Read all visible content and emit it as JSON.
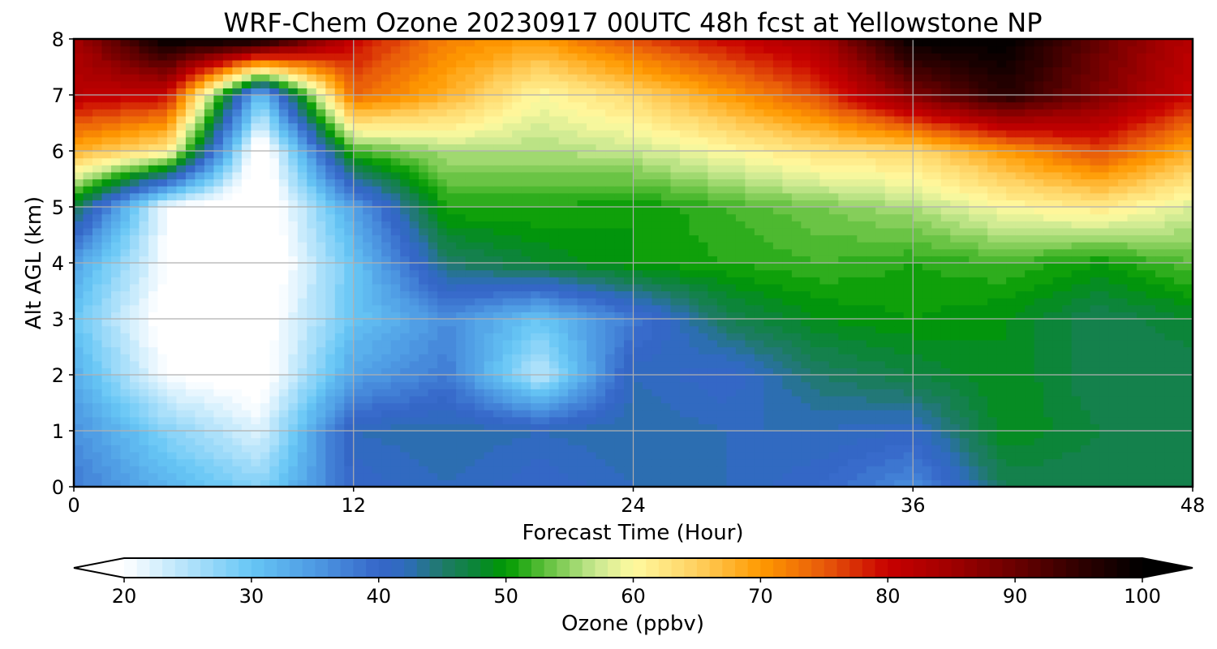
{
  "chart_data": {
    "type": "heatmap",
    "title": "WRF-Chem Ozone  20230917 00UTC 48h fcst at Yellowstone NP",
    "xlabel": "Forecast Time (Hour)",
    "ylabel": "Alt AGL (km)",
    "xlim": [
      0,
      48
    ],
    "ylim": [
      0,
      8
    ],
    "xticks": [
      0,
      12,
      24,
      36,
      48
    ],
    "yticks": [
      0,
      1,
      2,
      3,
      4,
      5,
      6,
      7,
      8
    ],
    "grid": true,
    "value_label": "Ozone  (ppbv)",
    "x": [
      0,
      4,
      8,
      12,
      16,
      20,
      24,
      28,
      32,
      36,
      40,
      44,
      48
    ],
    "y": [
      0,
      1,
      2,
      3,
      4,
      5,
      6,
      7,
      8
    ],
    "z": [
      [
        38,
        32,
        28,
        40,
        42,
        40,
        42,
        42,
        40,
        36,
        46,
        46,
        46
      ],
      [
        36,
        28,
        22,
        42,
        43,
        42,
        43,
        42,
        42,
        41,
        49,
        47,
        46
      ],
      [
        33,
        20,
        18,
        34,
        38,
        24,
        42,
        40,
        45,
        47,
        49,
        46,
        46
      ],
      [
        30,
        18,
        18,
        30,
        36,
        30,
        38,
        46,
        49,
        50,
        49,
        46,
        48
      ],
      [
        34,
        20,
        16,
        30,
        45,
        48,
        50,
        51,
        52,
        51,
        52,
        50,
        53
      ],
      [
        47,
        20,
        16,
        34,
        51,
        51,
        50,
        52,
        54,
        56,
        60,
        62,
        58
      ],
      [
        68,
        62,
        16,
        52,
        56,
        56,
        57,
        60,
        63,
        64,
        70,
        76,
        68
      ],
      [
        82,
        80,
        30,
        74,
        68,
        60,
        64,
        70,
        76,
        88,
        96,
        88,
        80
      ],
      [
        84,
        100,
        100,
        80,
        72,
        70,
        76,
        80,
        84,
        100,
        100,
        90,
        82
      ]
    ],
    "colorbar": {
      "min": 20,
      "max": 100,
      "ticks": [
        20,
        30,
        40,
        50,
        60,
        70,
        80,
        90,
        100
      ],
      "extend": "both",
      "orientation": "horizontal",
      "levels": 80,
      "stops": [
        {
          "v": 20,
          "c": "#ffffff"
        },
        {
          "v": 30,
          "c": "#66c6f5"
        },
        {
          "v": 35,
          "c": "#4e9ae3"
        },
        {
          "v": 40,
          "c": "#3566c8"
        },
        {
          "v": 42,
          "c": "#2f6bbf"
        },
        {
          "v": 45,
          "c": "#1f7a68"
        },
        {
          "v": 48,
          "c": "#08872f"
        },
        {
          "v": 50,
          "c": "#009a00"
        },
        {
          "v": 53,
          "c": "#5cbf3a"
        },
        {
          "v": 57,
          "c": "#c8e890"
        },
        {
          "v": 60,
          "c": "#fffaa0"
        },
        {
          "v": 65,
          "c": "#ffd060"
        },
        {
          "v": 70,
          "c": "#ff9a00"
        },
        {
          "v": 75,
          "c": "#e85a0a"
        },
        {
          "v": 80,
          "c": "#c80000"
        },
        {
          "v": 85,
          "c": "#a00000"
        },
        {
          "v": 90,
          "c": "#6a0000"
        },
        {
          "v": 95,
          "c": "#300000"
        },
        {
          "v": 100,
          "c": "#000000"
        }
      ]
    }
  }
}
